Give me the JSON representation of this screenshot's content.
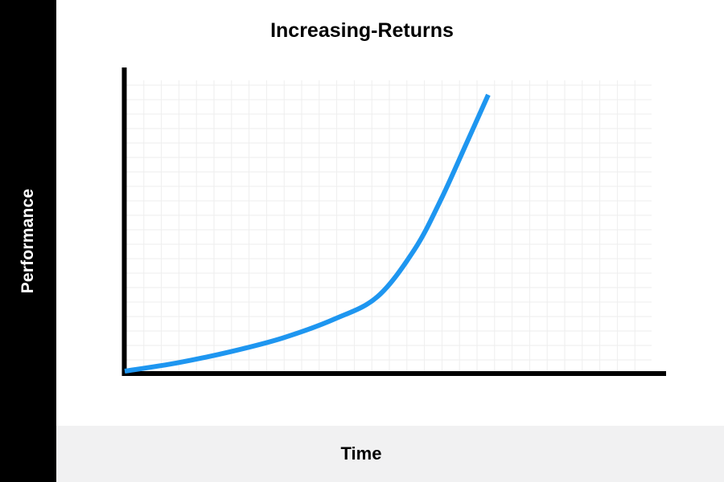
{
  "chart_data": {
    "type": "line",
    "title": "Increasing-Returns",
    "xlabel": "Time",
    "ylabel": "Performance",
    "xlim": [
      0,
      10
    ],
    "ylim": [
      0,
      10
    ],
    "grid": true,
    "series": [
      {
        "x": [
          0,
          1,
          2,
          3,
          4,
          4.8,
          5.5,
          6,
          6.5,
          6.9
        ],
        "values": [
          0,
          0.3,
          0.7,
          1.2,
          1.9,
          2.7,
          4.4,
          6.2,
          8.3,
          10
        ],
        "color": "#1e96f0"
      }
    ]
  }
}
